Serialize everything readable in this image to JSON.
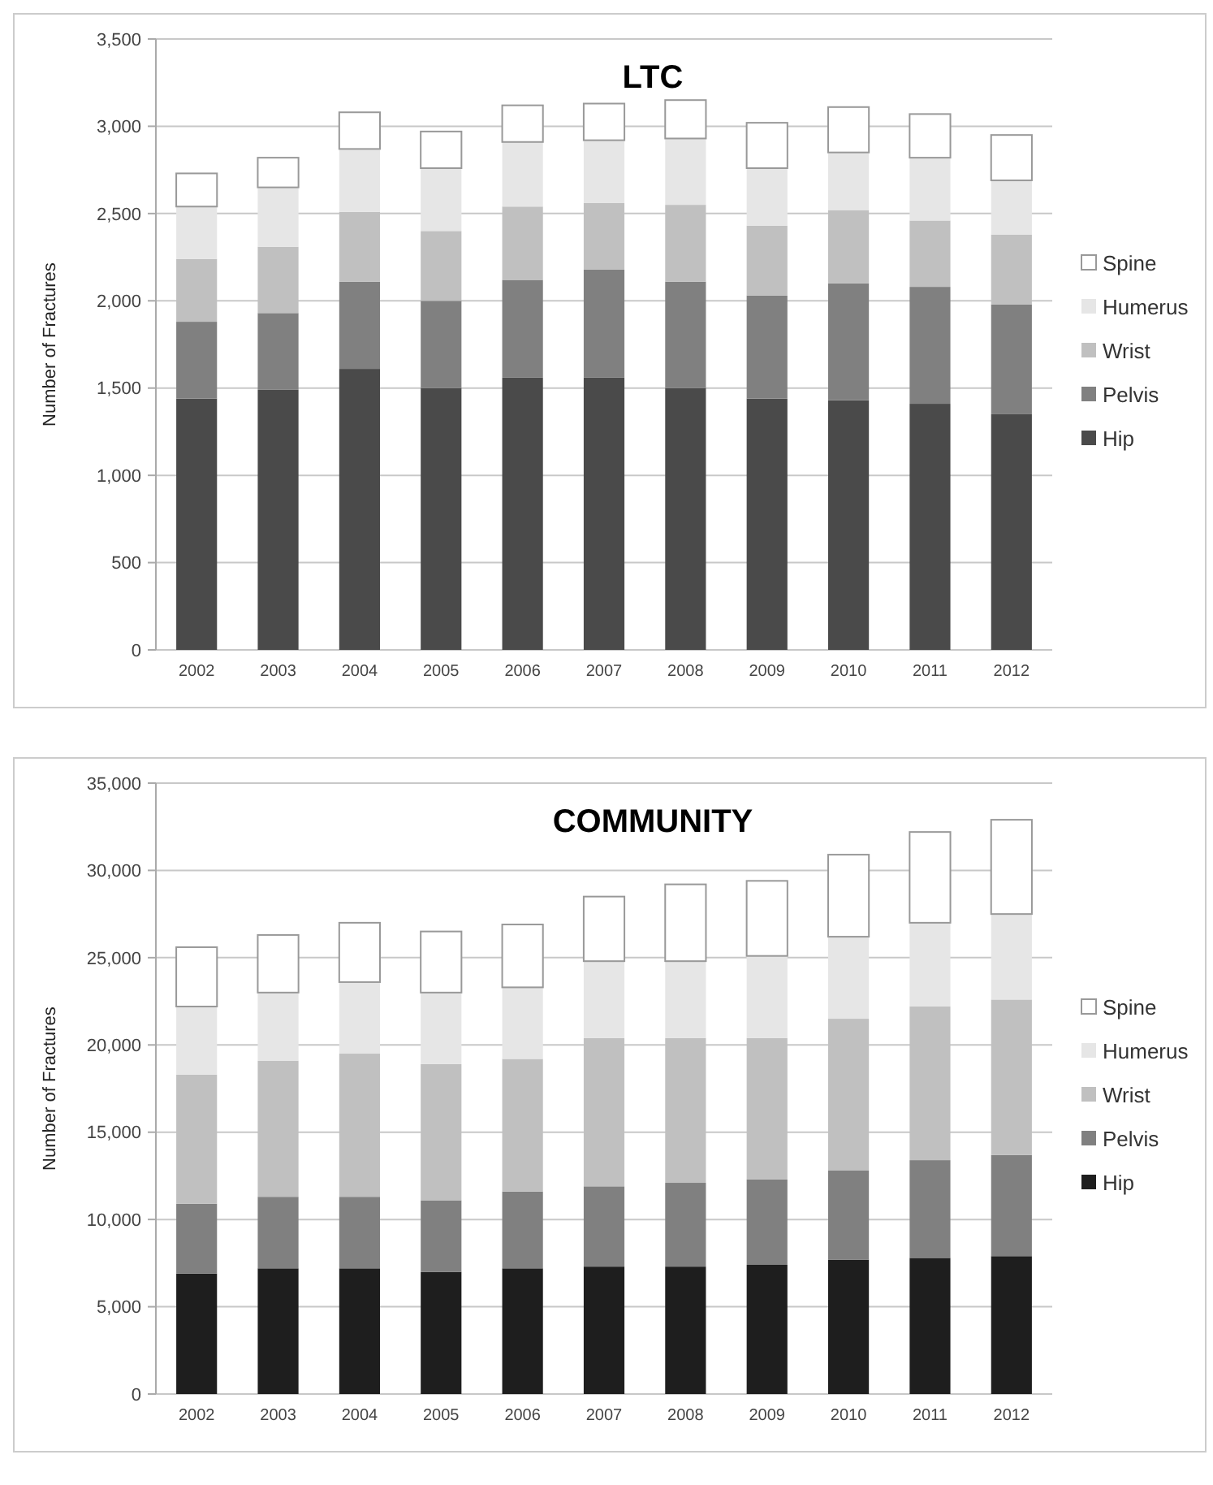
{
  "chart_data": [
    {
      "type": "bar",
      "title": "LTC",
      "ylabel": "Number of Fractures",
      "stacked": true,
      "grid": "y",
      "legend": "right",
      "categories": [
        "2002",
        "2003",
        "2004",
        "2005",
        "2006",
        "2007",
        "2008",
        "2009",
        "2010",
        "2011",
        "2012"
      ],
      "ylim": [
        0,
        3500
      ],
      "yticks": [
        {
          "value": 0,
          "label": "0"
        },
        {
          "value": 500,
          "label": "500"
        },
        {
          "value": 1000,
          "label": "1,000"
        },
        {
          "value": 1500,
          "label": "1,500"
        },
        {
          "value": 2000,
          "label": "2,000"
        },
        {
          "value": 2500,
          "label": "2,500"
        },
        {
          "value": 3000,
          "label": "3,000"
        },
        {
          "value": 3500,
          "label": "3,500"
        }
      ],
      "series": [
        {
          "name": "Hip",
          "color": "#4a4a4a",
          "values": [
            1440,
            1490,
            1610,
            1500,
            1560,
            1560,
            1500,
            1440,
            1430,
            1410,
            1350
          ]
        },
        {
          "name": "Pelvis",
          "color": "#808080",
          "values": [
            440,
            440,
            500,
            500,
            560,
            620,
            610,
            590,
            670,
            670,
            630
          ]
        },
        {
          "name": "Wrist",
          "color": "#c0c0c0",
          "values": [
            360,
            380,
            400,
            400,
            420,
            380,
            440,
            400,
            420,
            380,
            400
          ]
        },
        {
          "name": "Humerus",
          "color": "#e6e6e6",
          "values": [
            300,
            340,
            360,
            360,
            370,
            360,
            380,
            330,
            330,
            360,
            310
          ]
        },
        {
          "name": "Spine",
          "color": "#ffffff",
          "values": [
            190,
            170,
            210,
            210,
            210,
            210,
            220,
            260,
            260,
            250,
            260
          ]
        }
      ]
    },
    {
      "type": "bar",
      "title": "COMMUNITY",
      "ylabel": "Number of Fractures",
      "stacked": true,
      "grid": "y",
      "legend": "right",
      "categories": [
        "2002",
        "2003",
        "2004",
        "2005",
        "2006",
        "2007",
        "2008",
        "2009",
        "2010",
        "2011",
        "2012"
      ],
      "ylim": [
        0,
        35000
      ],
      "yticks": [
        {
          "value": 0,
          "label": "0"
        },
        {
          "value": 5000,
          "label": "5,000"
        },
        {
          "value": 10000,
          "label": "10,000"
        },
        {
          "value": 15000,
          "label": "15,000"
        },
        {
          "value": 20000,
          "label": "20,000"
        },
        {
          "value": 25000,
          "label": "25,000"
        },
        {
          "value": 30000,
          "label": "30,000"
        },
        {
          "value": 35000,
          "label": "35,000"
        }
      ],
      "series": [
        {
          "name": "Hip",
          "color": "#1e1e1e",
          "values": [
            6900,
            7200,
            7200,
            7000,
            7200,
            7300,
            7300,
            7400,
            7700,
            7800,
            7900
          ]
        },
        {
          "name": "Pelvis",
          "color": "#808080",
          "values": [
            4000,
            4100,
            4100,
            4100,
            4400,
            4600,
            4800,
            4900,
            5100,
            5600,
            5800
          ]
        },
        {
          "name": "Wrist",
          "color": "#c0c0c0",
          "values": [
            7400,
            7800,
            8200,
            7800,
            7600,
            8500,
            8300,
            8100,
            8700,
            8800,
            8900
          ]
        },
        {
          "name": "Humerus",
          "color": "#e6e6e6",
          "values": [
            3900,
            3900,
            4100,
            4100,
            4100,
            4400,
            4400,
            4700,
            4700,
            4800,
            4900
          ]
        },
        {
          "name": "Spine",
          "color": "#ffffff",
          "values": [
            3400,
            3300,
            3400,
            3500,
            3600,
            3700,
            4400,
            4300,
            4700,
            5200,
            5400
          ]
        }
      ]
    }
  ]
}
